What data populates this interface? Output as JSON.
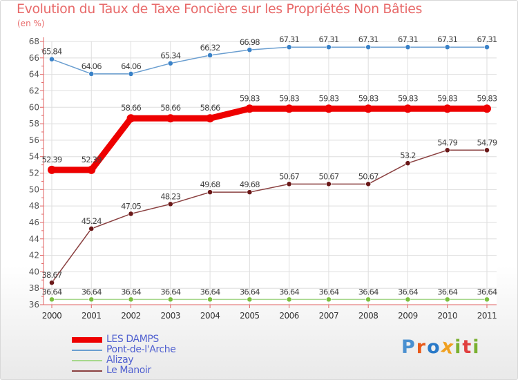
{
  "chart_data": {
    "type": "line",
    "title": "Evolution du Taux de Taxe Foncière sur les Propriétés Non Bâties",
    "ylabel": "(en %)",
    "xlabel": "",
    "ylim": [
      36,
      68
    ],
    "yticks": [
      36,
      38,
      40,
      42,
      44,
      46,
      48,
      50,
      52,
      54,
      56,
      58,
      60,
      62,
      64,
      66,
      68
    ],
    "categories": [
      "2000",
      "2001",
      "2002",
      "2003",
      "2004",
      "2005",
      "2006",
      "2007",
      "2008",
      "2009",
      "2010",
      "2011"
    ],
    "grid": true,
    "legend_position": "bottom-left",
    "series": [
      {
        "name": "LES DAMPS",
        "color": "#ee0000",
        "emphasis": true,
        "values": [
          52.39,
          52.39,
          58.66,
          58.66,
          58.66,
          59.83,
          59.83,
          59.83,
          59.83,
          59.83,
          59.83,
          59.83
        ],
        "labels": [
          "52.39",
          "52.39",
          "58.66",
          "58.66",
          "58.66",
          "59.83",
          "59.83",
          "59.83",
          "59.83",
          "59.83",
          "59.83",
          "59.83"
        ]
      },
      {
        "name": "Pont-de-l'Arche",
        "color": "#6a9ed0",
        "marker_color": "#3a82c8",
        "values": [
          65.84,
          64.06,
          64.06,
          65.34,
          66.32,
          66.98,
          67.31,
          67.31,
          67.31,
          67.31,
          67.31,
          67.31
        ],
        "labels": [
          "65.84",
          "64.06",
          "64.06",
          "65.34",
          "66.32",
          "66.98",
          "67.31",
          "67.31",
          "67.31",
          "67.31",
          "67.31",
          "67.31"
        ]
      },
      {
        "name": "Alizay",
        "color": "#a6d88c",
        "marker_color": "#7cc040",
        "values": [
          36.64,
          36.64,
          36.64,
          36.64,
          36.64,
          36.64,
          36.64,
          36.64,
          36.64,
          36.64,
          36.64,
          36.64
        ],
        "labels": [
          "36.64",
          "36.64",
          "36.64",
          "36.64",
          "36.64",
          "36.64",
          "36.64",
          "36.64",
          "36.64",
          "36.64",
          "36.64",
          "36.64"
        ]
      },
      {
        "name": "Le Manoir",
        "color": "#8a4040",
        "marker_color": "#6a1818",
        "values": [
          38.67,
          45.24,
          47.05,
          48.23,
          49.68,
          49.68,
          50.67,
          50.67,
          50.67,
          53.2,
          54.79,
          54.79
        ],
        "labels": [
          "38.67",
          "45.24",
          "47.05",
          "48.23",
          "49.68",
          "49.68",
          "50.67",
          "50.67",
          "50.67",
          "53.2",
          "54.79",
          "54.79"
        ]
      }
    ]
  },
  "logo": {
    "letters": [
      "P",
      "r",
      "o",
      "x",
      "i",
      "t",
      "i"
    ],
    "colors": [
      "#4a90d0",
      "#e85a1a",
      "#2a7ac8",
      "#f0a020",
      "#7ab030",
      "#e04040",
      "#7ab030"
    ]
  }
}
